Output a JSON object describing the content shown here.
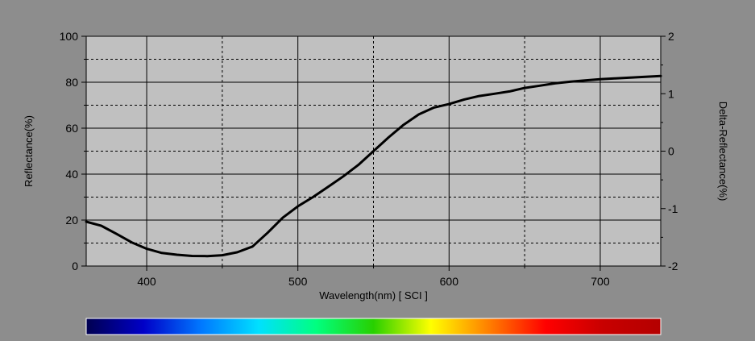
{
  "chart_data": {
    "type": "line",
    "title": "",
    "xlabel": "Wavelength(nm) [ SCI ]",
    "ylabel": "Reflectance(%)",
    "y2label": "Delta-Reflectance(%)",
    "xlim": [
      360,
      740
    ],
    "ylim": [
      0,
      100
    ],
    "y2lim": [
      -2,
      2
    ],
    "x_ticks": [
      400,
      500,
      600,
      700
    ],
    "x_minor_ticks": [
      450,
      550,
      650
    ],
    "y_ticks": [
      0,
      20,
      40,
      60,
      80,
      100
    ],
    "y_minor_ticks": [
      10,
      30,
      50,
      70,
      90
    ],
    "y2_ticks": [
      -2,
      -1,
      0,
      1,
      2
    ],
    "grid": true,
    "legend": "none",
    "colors": {
      "background": "#8d8d8d",
      "plot_area": "#c0c0c0",
      "line": "#000000",
      "grid": "#000000"
    },
    "series": [
      {
        "x": [
          360,
          370,
          380,
          390,
          400,
          410,
          420,
          430,
          440,
          450,
          460,
          470,
          480,
          490,
          500,
          510,
          520,
          530,
          540,
          550,
          560,
          570,
          580,
          590,
          600,
          610,
          620,
          630,
          640,
          650,
          660,
          670,
          680,
          690,
          700,
          710,
          720,
          730,
          740
        ],
        "y": [
          19.3,
          17.5,
          14.0,
          10.3,
          7.5,
          5.7,
          4.9,
          4.4,
          4.3,
          4.7,
          6.0,
          8.5,
          14.5,
          21.0,
          26.0,
          30.0,
          34.5,
          39.0,
          44.0,
          50.0,
          56.0,
          61.5,
          66.0,
          69.0,
          70.5,
          72.5,
          74.0,
          75.0,
          76.0,
          77.5,
          78.5,
          79.5,
          80.2,
          80.8,
          81.3,
          81.7,
          82.0,
          82.4,
          82.7
        ]
      }
    ]
  },
  "spectrum_bar": {
    "colors": [
      "#000050",
      "#0000c8",
      "#0078ff",
      "#00e0ff",
      "#00ff80",
      "#28d000",
      "#ffff00",
      "#ff8000",
      "#ff0000",
      "#c80000",
      "#b40000"
    ]
  }
}
